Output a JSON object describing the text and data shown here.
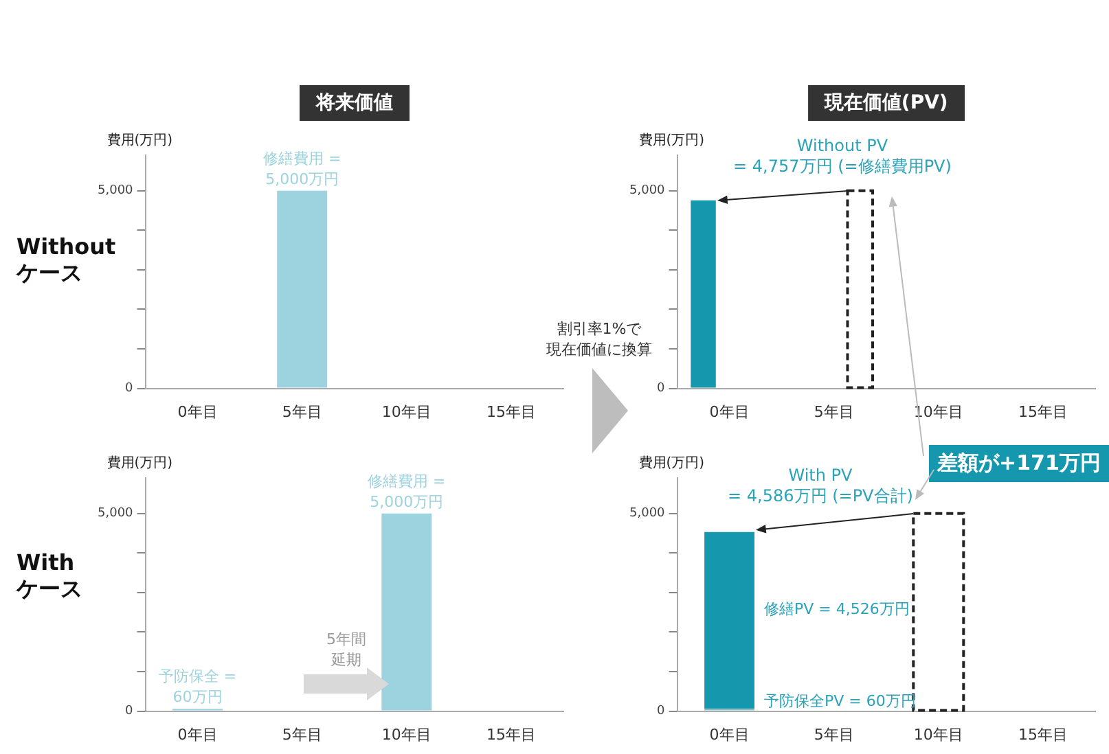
{
  "chart_data": [
    {
      "type": "bar",
      "title": "将来価値",
      "ylabel": "費用(万円)",
      "categories": [
        "0年目",
        "5年目",
        "10年目",
        "15年目"
      ],
      "values": [
        null,
        5000,
        null,
        null
      ],
      "color": "#9dd3df",
      "value_labels": [
        null,
        "修繕費用 =\n5,000万円",
        null,
        null
      ],
      "ylim": [
        0,
        5900
      ],
      "yticks": [
        {
          "value": 0,
          "label": "0"
        },
        {
          "value": 1000,
          "label": null
        },
        {
          "value": 2000,
          "label": null
        },
        {
          "value": 3000,
          "label": null
        },
        {
          "value": 4000,
          "label": null
        },
        {
          "value": 5000,
          "label": "5,000"
        }
      ],
      "annotations": [
        "Without\nケース"
      ]
    },
    {
      "type": "bar",
      "title": "現在価値(PV)",
      "ylabel": "費用(万円)",
      "categories": [
        "0年目",
        "5年目",
        "10年目",
        "15年目"
      ],
      "series": [
        {
          "color": "#1597ad",
          "values": [
            4757,
            null,
            null,
            null
          ]
        },
        {
          "color": "#222222",
          "line_style": "dashed",
          "values": [
            null,
            5000,
            null,
            null
          ]
        }
      ],
      "ylim": [
        0,
        5900
      ],
      "yticks": [
        {
          "value": 0,
          "label": "0"
        },
        {
          "value": 1000,
          "label": null
        },
        {
          "value": 2000,
          "label": null
        },
        {
          "value": 3000,
          "label": null
        },
        {
          "value": 4000,
          "label": null
        },
        {
          "value": 5000,
          "label": "5,000"
        }
      ],
      "annotations": [
        "Without PV\n= 4,757万円 (=修繕費用PV)",
        "割引率1%で",
        "現在価値に換算"
      ]
    },
    {
      "type": "bar",
      "ylabel": "費用(万円)",
      "categories": [
        "0年目",
        "5年目",
        "10年目",
        "15年目"
      ],
      "values": [
        60,
        null,
        5000,
        null
      ],
      "color": "#9dd3df",
      "value_labels": [
        "予防保全 =\n60万円",
        null,
        "修繕費用 =\n5,000万円",
        null
      ],
      "ylim": [
        0,
        5900
      ],
      "yticks": [
        {
          "value": 0,
          "label": "0"
        },
        {
          "value": 1000,
          "label": null
        },
        {
          "value": 2000,
          "label": null
        },
        {
          "value": 3000,
          "label": null
        },
        {
          "value": 4000,
          "label": null
        },
        {
          "value": 5000,
          "label": "5,000"
        }
      ],
      "annotations": [
        "With\nケース",
        "5年間",
        "延期"
      ]
    },
    {
      "type": "bar",
      "stacked": true,
      "ylabel": "費用(万円)",
      "categories": [
        "0年目",
        "5年目",
        "10年目",
        "15年目"
      ],
      "series": [
        {
          "color": "#1597ad",
          "values": [
            60,
            null,
            null,
            null
          ]
        },
        {
          "color": "#1597ad",
          "values": [
            4526,
            null,
            null,
            null
          ]
        },
        {
          "color": "#222222",
          "line_style": "dashed",
          "values": [
            null,
            null,
            5000,
            null
          ]
        }
      ],
      "ylim": [
        0,
        5900
      ],
      "yticks": [
        {
          "value": 0,
          "label": "0"
        },
        {
          "value": 1000,
          "label": null
        },
        {
          "value": 2000,
          "label": null
        },
        {
          "value": 3000,
          "label": null
        },
        {
          "value": 4000,
          "label": null
        },
        {
          "value": 5000,
          "label": "5,000"
        }
      ],
      "annotations": [
        "With PV\n= 4,586万円 (=PV合計)",
        "差額が+171万円",
        "修繕PV = 4,526万円",
        "予防保全PV = 60万円"
      ]
    }
  ]
}
